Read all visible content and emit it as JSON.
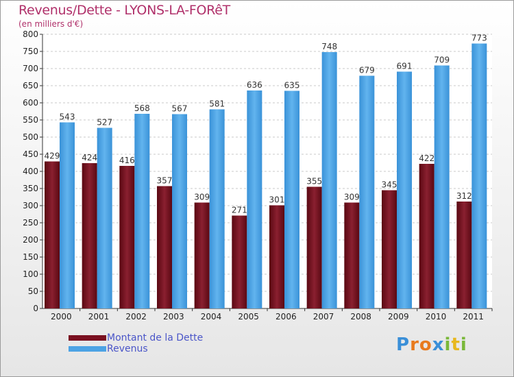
{
  "chart_data": {
    "type": "bar",
    "title": "Revenus/Dette - LYONS-LA-FORêT",
    "subtitle": "(en milliers d'€)",
    "categories": [
      "2000",
      "2001",
      "2002",
      "2003",
      "2004",
      "2005",
      "2006",
      "2007",
      "2008",
      "2009",
      "2010",
      "2011"
    ],
    "series": [
      {
        "name": "Montant de la Dette",
        "values": [
          429,
          424,
          416,
          357,
          309,
          271,
          301,
          355,
          309,
          345,
          422,
          312
        ],
        "color": "#7a1020"
      },
      {
        "name": "Revenus",
        "values": [
          543,
          527,
          568,
          567,
          581,
          636,
          635,
          748,
          679,
          691,
          709,
          773
        ],
        "color": "#4da3e4"
      }
    ],
    "ylim": [
      0,
      800
    ],
    "yticks": [
      0,
      50,
      100,
      150,
      200,
      250,
      300,
      350,
      400,
      450,
      500,
      550,
      600,
      650,
      700,
      750,
      800
    ],
    "grid": true,
    "legend_position": "bottom-left"
  },
  "logo": {
    "letters": [
      "P",
      "r",
      "o",
      "x",
      "i",
      "t",
      "i"
    ],
    "colors": [
      "#3a8fd8",
      "#e87a1e",
      "#e87a1e",
      "#3a8fd8",
      "#7ab83a",
      "#e8b81e",
      "#7ab83a"
    ]
  }
}
